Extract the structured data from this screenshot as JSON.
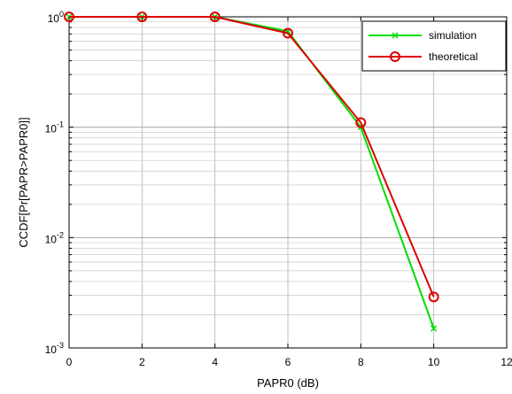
{
  "chart_data": {
    "type": "line",
    "xlabel": "PAPR0 (dB)",
    "ylabel": "CCDF[Pr[PAPR>PAPR0]]",
    "xlim": [
      0,
      12
    ],
    "ylim": [
      0.001,
      1
    ],
    "yscale": "log",
    "grid": true,
    "legend_position": "top-right",
    "x_ticks": [
      {
        "value": 0,
        "label": "0"
      },
      {
        "value": 2,
        "label": "2"
      },
      {
        "value": 4,
        "label": "4"
      },
      {
        "value": 6,
        "label": "6"
      },
      {
        "value": 8,
        "label": "8"
      },
      {
        "value": 10,
        "label": "10"
      },
      {
        "value": 12,
        "label": "12"
      }
    ],
    "y_ticks": [
      {
        "value": 1,
        "base": "10",
        "exp": "0"
      },
      {
        "value": 0.1,
        "base": "10",
        "exp": "-1"
      },
      {
        "value": 0.01,
        "base": "10",
        "exp": "-2"
      },
      {
        "value": 0.001,
        "base": "10",
        "exp": "-3"
      }
    ],
    "series": [
      {
        "name": "simulation",
        "color": "#00dd00",
        "marker": "x",
        "x": [
          0,
          2,
          4,
          6,
          8,
          10
        ],
        "values": [
          1.0,
          1.0,
          1.0,
          0.74,
          0.1,
          0.0015
        ]
      },
      {
        "name": "theoretical",
        "color": "#dd0000",
        "marker": "circle",
        "x": [
          0,
          2,
          4,
          6,
          8,
          10
        ],
        "values": [
          1.0,
          1.0,
          1.0,
          0.71,
          0.11,
          0.0029
        ]
      }
    ]
  }
}
